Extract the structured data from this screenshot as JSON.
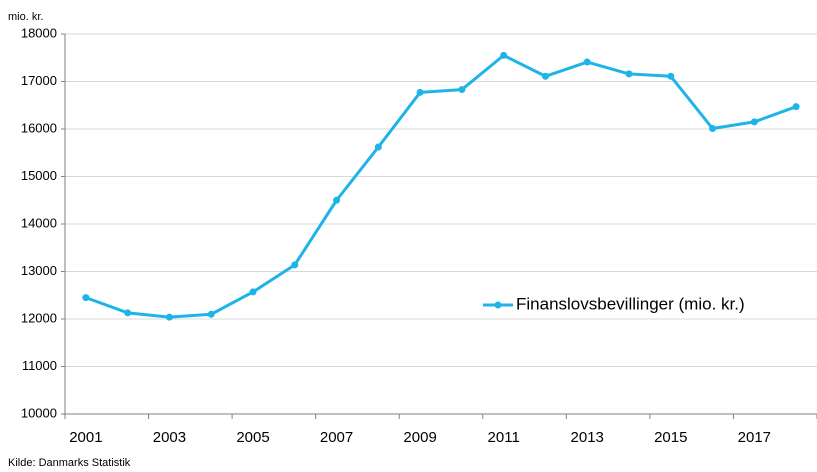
{
  "chart_data": {
    "type": "line",
    "y_unit_label": "mio. kr.",
    "source": "Kilde: Danmarks  Statistik",
    "categories": [
      "2001",
      null,
      "2003",
      null,
      "2005",
      null,
      "2007",
      null,
      "2009",
      null,
      "2011",
      null,
      "2013",
      null,
      "2015",
      null,
      "2017",
      null
    ],
    "series": [
      {
        "name": "Finanslovsbevillinger (mio. kr.)",
        "color": "#1fb4e8",
        "values": [
          12450,
          12130,
          12040,
          12100,
          12570,
          13140,
          14500,
          15620,
          16770,
          16830,
          17550,
          17110,
          17410,
          17160,
          17110,
          16010,
          16150,
          16470
        ]
      }
    ],
    "ylim": [
      10000,
      18000
    ],
    "yticks": [
      10000,
      11000,
      12000,
      13000,
      14000,
      15000,
      16000,
      17000,
      18000
    ],
    "grid": true,
    "legend": "right"
  }
}
